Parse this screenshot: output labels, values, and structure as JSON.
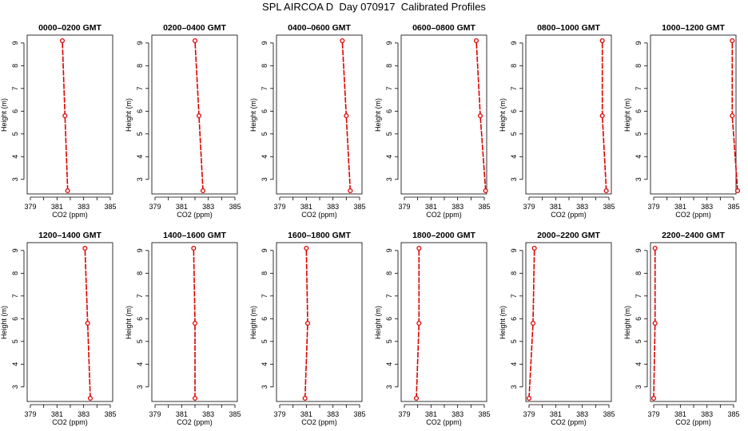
{
  "title": "SPL AIRCOA D  Day 070917  Calibrated Profiles",
  "colors": {
    "line": "#dd0000",
    "axis": "#000000",
    "background": "#ffffff"
  },
  "chart_data": [
    {
      "type": "line",
      "title": "0000–0200 GMT",
      "xlabel": "CO2 (ppm)",
      "ylabel": "Height (m)",
      "xlim": [
        379,
        385
      ],
      "ylim": [
        2.5,
        9.1
      ],
      "xticks": [
        379,
        381,
        383,
        385
      ],
      "yticks": [
        3,
        4,
        5,
        6,
        7,
        8,
        9
      ],
      "series": [
        {
          "x": [
            381.8,
            381.6,
            381.4
          ],
          "y": [
            2.5,
            5.8,
            9.1
          ]
        }
      ]
    },
    {
      "type": "line",
      "title": "0200–0400 GMT",
      "xlabel": "CO2 (ppm)",
      "ylabel": "Height (m)",
      "xlim": [
        379,
        385
      ],
      "ylim": [
        2.5,
        9.1
      ],
      "xticks": [
        379,
        381,
        383,
        385
      ],
      "yticks": [
        3,
        4,
        5,
        6,
        7,
        8,
        9
      ],
      "series": [
        {
          "x": [
            382.6,
            382.3,
            382.0
          ],
          "y": [
            2.5,
            5.8,
            9.1
          ]
        }
      ]
    },
    {
      "type": "line",
      "title": "0400–0600 GMT",
      "xlabel": "CO2 (ppm)",
      "ylabel": "Height (m)",
      "xlim": [
        379,
        385
      ],
      "ylim": [
        2.5,
        9.1
      ],
      "xticks": [
        379,
        381,
        383,
        385
      ],
      "yticks": [
        3,
        4,
        5,
        6,
        7,
        8,
        9
      ],
      "series": [
        {
          "x": [
            384.3,
            384.0,
            383.7
          ],
          "y": [
            2.5,
            5.8,
            9.1
          ]
        }
      ]
    },
    {
      "type": "line",
      "title": "0600–0800 GMT",
      "xlabel": "CO2 (ppm)",
      "ylabel": "Height (m)",
      "xlim": [
        379,
        385
      ],
      "ylim": [
        2.5,
        9.1
      ],
      "xticks": [
        379,
        381,
        383,
        385
      ],
      "yticks": [
        3,
        4,
        5,
        6,
        7,
        8,
        9
      ],
      "series": [
        {
          "x": [
            385.1,
            384.7,
            384.4
          ],
          "y": [
            2.5,
            5.8,
            9.1
          ]
        }
      ]
    },
    {
      "type": "line",
      "title": "0800–1000 GMT",
      "xlabel": "CO2 (ppm)",
      "ylabel": "Height (m)",
      "xlim": [
        379,
        385
      ],
      "ylim": [
        2.5,
        9.1
      ],
      "xticks": [
        379,
        381,
        383,
        385
      ],
      "yticks": [
        3,
        4,
        5,
        6,
        7,
        8,
        9
      ],
      "series": [
        {
          "x": [
            384.8,
            384.5,
            384.5
          ],
          "y": [
            2.5,
            5.8,
            9.1
          ]
        }
      ]
    },
    {
      "type": "line",
      "title": "1000–1200 GMT",
      "xlabel": "CO2 (ppm)",
      "ylabel": "Height (m)",
      "xlim": [
        379,
        385
      ],
      "ylim": [
        2.5,
        9.1
      ],
      "xticks": [
        379,
        381,
        383,
        385
      ],
      "yticks": [
        3,
        4,
        5,
        6,
        7,
        8,
        9
      ],
      "series": [
        {
          "x": [
            385.3,
            384.9,
            384.9
          ],
          "y": [
            2.5,
            5.8,
            9.1
          ]
        }
      ]
    },
    {
      "type": "line",
      "title": "1200–1400 GMT",
      "xlabel": "CO2 (ppm)",
      "ylabel": "Height (m)",
      "xlim": [
        379,
        385
      ],
      "ylim": [
        2.5,
        9.1
      ],
      "xticks": [
        379,
        381,
        383,
        385
      ],
      "yticks": [
        3,
        4,
        5,
        6,
        7,
        8,
        9
      ],
      "series": [
        {
          "x": [
            383.5,
            383.3,
            383.1
          ],
          "y": [
            2.5,
            5.8,
            9.1
          ]
        }
      ]
    },
    {
      "type": "line",
      "title": "1400–1600 GMT",
      "xlabel": "CO2 (ppm)",
      "ylabel": "Height (m)",
      "xlim": [
        379,
        385
      ],
      "ylim": [
        2.5,
        9.1
      ],
      "xticks": [
        379,
        381,
        383,
        385
      ],
      "yticks": [
        3,
        4,
        5,
        6,
        7,
        8,
        9
      ],
      "series": [
        {
          "x": [
            382.0,
            382.0,
            381.9
          ],
          "y": [
            2.5,
            5.8,
            9.1
          ]
        }
      ]
    },
    {
      "type": "line",
      "title": "1600–1800 GMT",
      "xlabel": "CO2 (ppm)",
      "ylabel": "Height (m)",
      "xlim": [
        379,
        385
      ],
      "ylim": [
        2.5,
        9.1
      ],
      "xticks": [
        379,
        381,
        383,
        385
      ],
      "yticks": [
        3,
        4,
        5,
        6,
        7,
        8,
        9
      ],
      "series": [
        {
          "x": [
            380.9,
            381.1,
            381.0
          ],
          "y": [
            2.5,
            5.8,
            9.1
          ]
        }
      ]
    },
    {
      "type": "line",
      "title": "1800–2000 GMT",
      "xlabel": "CO2 (ppm)",
      "ylabel": "Height (m)",
      "xlim": [
        379,
        385
      ],
      "ylim": [
        2.5,
        9.1
      ],
      "xticks": [
        379,
        381,
        383,
        385
      ],
      "yticks": [
        3,
        4,
        5,
        6,
        7,
        8,
        9
      ],
      "series": [
        {
          "x": [
            379.9,
            380.1,
            380.1
          ],
          "y": [
            2.5,
            5.8,
            9.1
          ]
        }
      ]
    },
    {
      "type": "line",
      "title": "2000–2200 GMT",
      "xlabel": "CO2 (ppm)",
      "ylabel": "Height (m)",
      "xlim": [
        379,
        385
      ],
      "ylim": [
        2.5,
        9.1
      ],
      "xticks": [
        379,
        381,
        383,
        385
      ],
      "yticks": [
        3,
        4,
        5,
        6,
        7,
        8,
        9
      ],
      "series": [
        {
          "x": [
            379.0,
            379.3,
            379.4
          ],
          "y": [
            2.5,
            5.8,
            9.1
          ]
        }
      ]
    },
    {
      "type": "line",
      "title": "2200–2400 GMT",
      "xlabel": "CO2 (ppm)",
      "ylabel": "Height (m)",
      "xlim": [
        379,
        385
      ],
      "ylim": [
        2.5,
        9.1
      ],
      "xticks": [
        379,
        381,
        383,
        385
      ],
      "yticks": [
        3,
        4,
        5,
        6,
        7,
        8,
        9
      ],
      "series": [
        {
          "x": [
            379.0,
            379.1,
            379.1
          ],
          "y": [
            2.5,
            5.8,
            9.1
          ]
        }
      ]
    }
  ]
}
